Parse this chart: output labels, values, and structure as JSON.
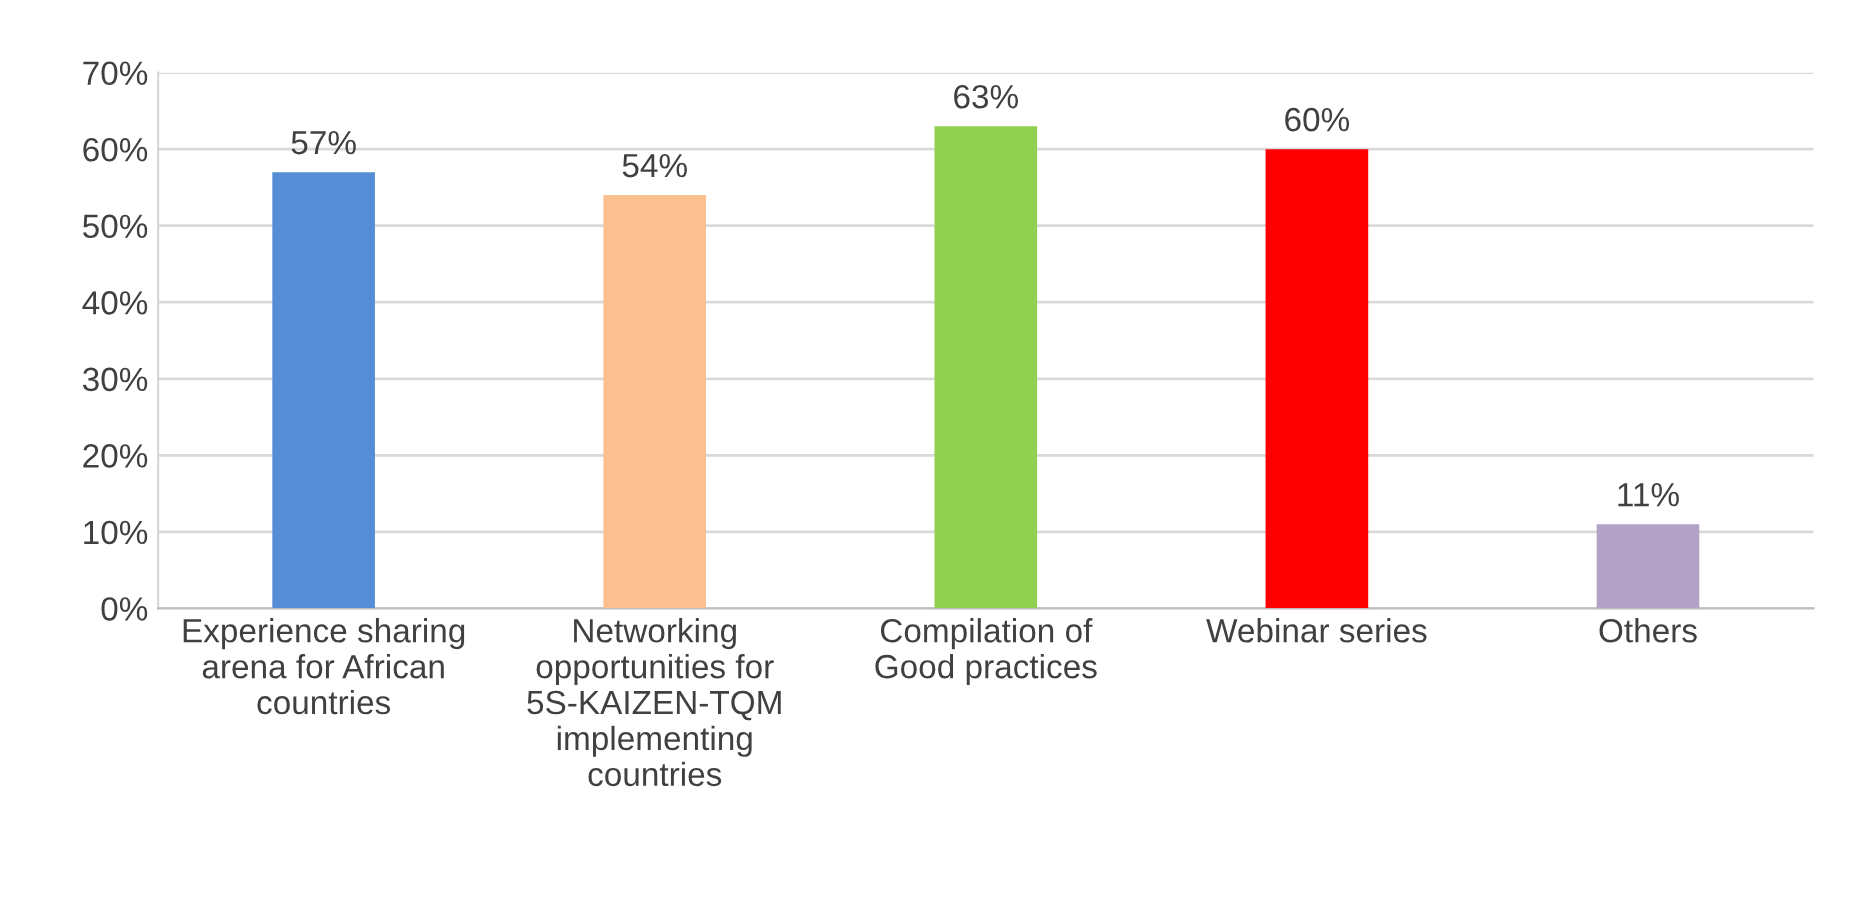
{
  "chart_data": {
    "type": "bar",
    "categories": [
      "Experience sharing\narena for African\ncountries",
      "Networking\nopportunities for\n5S-KAIZEN-TQM\nimplementing\ncountries",
      "Compilation of\nGood practices",
      "Webinar series",
      "Others"
    ],
    "values": [
      57,
      54,
      63,
      60,
      11
    ],
    "value_labels": [
      "57%",
      "54%",
      "63%",
      "60%",
      "11%"
    ],
    "colors": [
      "#558ed5",
      "#fac090",
      "#92d050",
      "#ff0000",
      "#b3a2c7"
    ],
    "ylim": [
      0,
      70
    ],
    "yticks": [
      {
        "value": 0,
        "label": "0%"
      },
      {
        "value": 10,
        "label": "10%"
      },
      {
        "value": 20,
        "label": "20%"
      },
      {
        "value": 30,
        "label": "30%"
      },
      {
        "value": 40,
        "label": "40%"
      },
      {
        "value": 50,
        "label": "50%"
      },
      {
        "value": 60,
        "label": "60%"
      },
      {
        "value": 70,
        "label": "70%"
      }
    ],
    "grid": "y"
  }
}
